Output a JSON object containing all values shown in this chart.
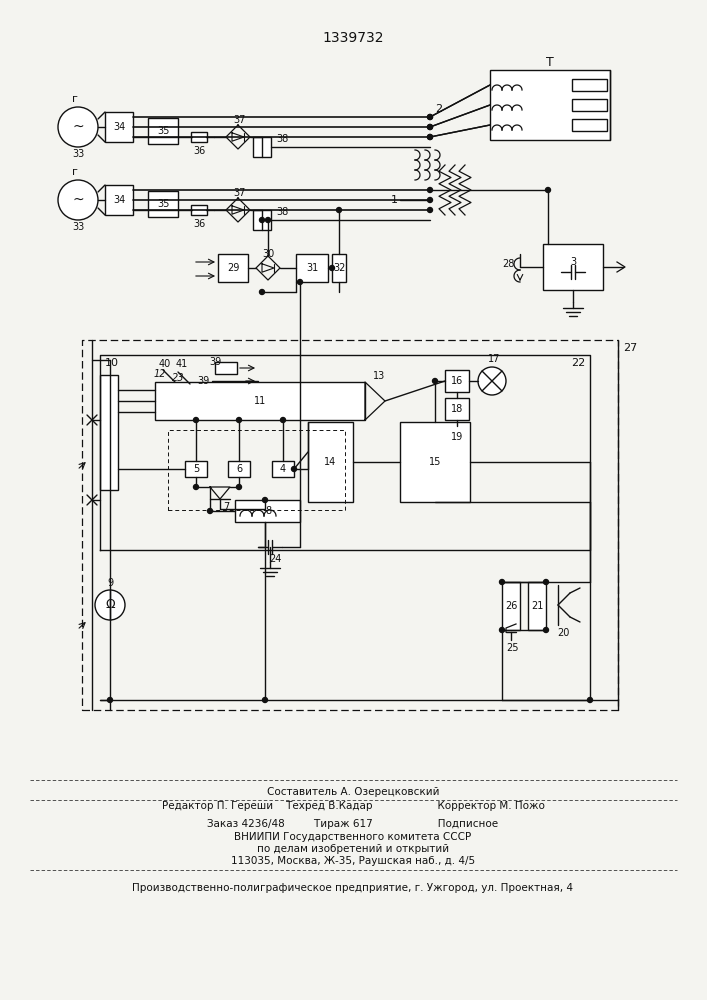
{
  "title": "1339732",
  "bg_color": "#f4f4f0",
  "lc": "#111111",
  "footer": [
    [
      "Составитель А. Озерецковский",
      353,
      208,
      "center"
    ],
    [
      "Редактор П. Гереши    Техред В.Кадар                    Корректор М. Пожо",
      353,
      194,
      "center"
    ],
    [
      "Заказ 4236/48         Тираж 617                    Подписное",
      353,
      176,
      "center"
    ],
    [
      "ВНИИПИ Государственного комитета СССР",
      353,
      163,
      "center"
    ],
    [
      "по делам изобретений и открытий",
      353,
      151,
      "center"
    ],
    [
      "113035, Москва, Ж-35, Раушская наб., д. 4/5",
      353,
      139,
      "center"
    ],
    [
      "Производственно-полиграфическое предприятие, г. Ужгород, ул. Проектная, 4",
      353,
      112,
      "center"
    ]
  ]
}
